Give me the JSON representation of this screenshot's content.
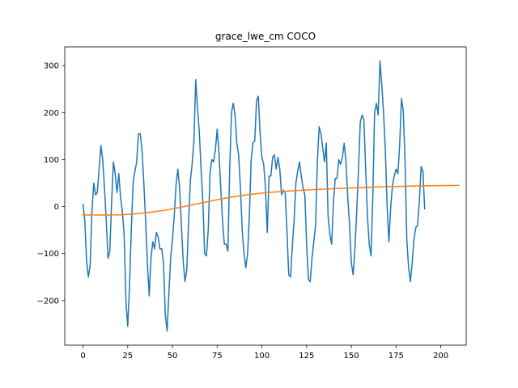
{
  "chart_data": {
    "type": "line",
    "title": "grace_lwe_cm COCO",
    "xlabel": "",
    "ylabel": "",
    "xlim": [
      -10.2,
      214.2
    ],
    "ylim": [
      -295,
      340
    ],
    "xticks": [
      0,
      25,
      50,
      75,
      100,
      125,
      150,
      175,
      200
    ],
    "yticks": [
      -200,
      -100,
      0,
      100,
      200,
      300
    ],
    "grid": false,
    "legend": "none",
    "series": [
      {
        "color": "#1f77b4",
        "values": [
          5,
          -30,
          -115,
          -150,
          -125,
          -10,
          50,
          25,
          30,
          80,
          130,
          100,
          40,
          -30,
          -110,
          -95,
          10,
          95,
          70,
          30,
          70,
          20,
          -10,
          -60,
          -200,
          -255,
          -170,
          -50,
          50,
          75,
          95,
          155,
          155,
          120,
          50,
          -30,
          -120,
          -190,
          -110,
          -75,
          -90,
          -55,
          -65,
          -90,
          -90,
          -120,
          -230,
          -265,
          -185,
          -110,
          -70,
          -20,
          45,
          80,
          40,
          -40,
          -115,
          -160,
          -135,
          -35,
          55,
          90,
          140,
          270,
          210,
          160,
          80,
          10,
          -100,
          -105,
          -50,
          70,
          100,
          95,
          120,
          165,
          115,
          40,
          -30,
          -80,
          -80,
          -95,
          80,
          200,
          220,
          195,
          135,
          110,
          40,
          -50,
          -100,
          -130,
          -100,
          -20,
          100,
          135,
          140,
          225,
          235,
          155,
          105,
          90,
          40,
          -55,
          65,
          65,
          105,
          110,
          80,
          105,
          80,
          25,
          35,
          30,
          -50,
          -145,
          -150,
          -85,
          -30,
          50,
          75,
          95,
          65,
          40,
          25,
          -80,
          -155,
          -160,
          -110,
          -75,
          -40,
          95,
          170,
          155,
          125,
          95,
          135,
          -20,
          -60,
          -80,
          10,
          60,
          60,
          100,
          90,
          105,
          135,
          95,
          20,
          -40,
          -120,
          -145,
          -90,
          -10,
          80,
          180,
          195,
          185,
          80,
          -20,
          -80,
          -105,
          20,
          200,
          220,
          195,
          310,
          260,
          200,
          120,
          0,
          -75,
          0,
          45,
          65,
          80,
          70,
          130,
          230,
          205,
          100,
          -70,
          -130,
          -160,
          -120,
          -70,
          -45,
          -40,
          10,
          85,
          75,
          -5
        ]
      },
      {
        "color": "#ff7f0e",
        "values": [
          -18,
          -18,
          -18,
          -18,
          -18,
          -18,
          -18,
          -18,
          -18,
          -18,
          -18,
          -18,
          -18,
          -18,
          -18,
          -17.9,
          -17.9,
          -17.8,
          -17.7,
          -17.6,
          -17.5,
          -17.4,
          -17.2,
          -17,
          -16.8,
          -16.6,
          -16.3,
          -16.1,
          -15.8,
          -15.5,
          -15.2,
          -14.8,
          -14.5,
          -14.1,
          -13.7,
          -13.3,
          -12.9,
          -12.4,
          -11.9,
          -11.5,
          -10.9,
          -10.4,
          -9.8,
          -9.3,
          -8.7,
          -8.1,
          -7.5,
          -6.9,
          -6.2,
          -5.5,
          -4.8,
          -4.1,
          -3.4,
          -2.7,
          -1.9,
          -1.1,
          -0.4,
          0.4,
          1.2,
          2,
          2.8,
          3.6,
          4.4,
          5.2,
          6,
          6.8,
          7.6,
          8.4,
          9.2,
          10,
          10.8,
          11.6,
          12.4,
          13.1,
          13.9,
          14.6,
          15.4,
          16.1,
          16.8,
          17.5,
          18.2,
          18.9,
          19.6,
          20.2,
          20.8,
          21.4,
          22,
          22.6,
          23.2,
          23.7,
          24.2,
          24.7,
          25.2,
          25.7,
          26.2,
          26.6,
          27,
          27.5,
          27.9,
          28.3,
          28.7,
          29,
          29.4,
          29.7,
          30.1,
          30.4,
          30.7,
          31,
          31.3,
          31.6,
          31.9,
          32.1,
          32.4,
          32.7,
          32.9,
          33.2,
          33.4,
          33.7,
          33.9,
          34.1,
          34.4,
          34.6,
          34.8,
          35,
          35.2,
          35.4,
          35.6,
          35.8,
          36,
          36.2,
          36.4,
          36.6,
          36.7,
          36.9,
          37.1,
          37.3,
          37.5,
          37.6,
          37.8,
          38,
          38.1,
          38.3,
          38.4,
          38.6,
          38.8,
          38.9,
          39.1,
          39.2,
          39.4,
          39.5,
          39.7,
          39.8,
          40,
          40.1,
          40.3,
          40.4,
          40.5,
          40.7,
          40.8,
          40.9,
          41.1,
          41.2,
          41.3,
          41.5,
          41.6,
          41.7,
          41.8,
          42,
          42.1,
          42.2,
          42.3,
          42.4,
          42.5,
          42.6,
          42.7,
          42.8,
          42.9,
          43,
          43.1,
          43.2,
          43.3,
          43.4,
          43.5,
          43.6,
          43.7,
          43.8,
          43.9,
          44,
          44,
          44.1,
          44.2,
          44.3,
          44.3,
          44.4,
          44.4,
          44.5,
          44.5,
          44.6,
          44.6,
          44.7,
          44.7,
          44.7,
          44.8,
          44.8,
          44.8,
          44.9,
          44.9,
          44.9,
          45,
          45,
          45
        ]
      }
    ]
  }
}
